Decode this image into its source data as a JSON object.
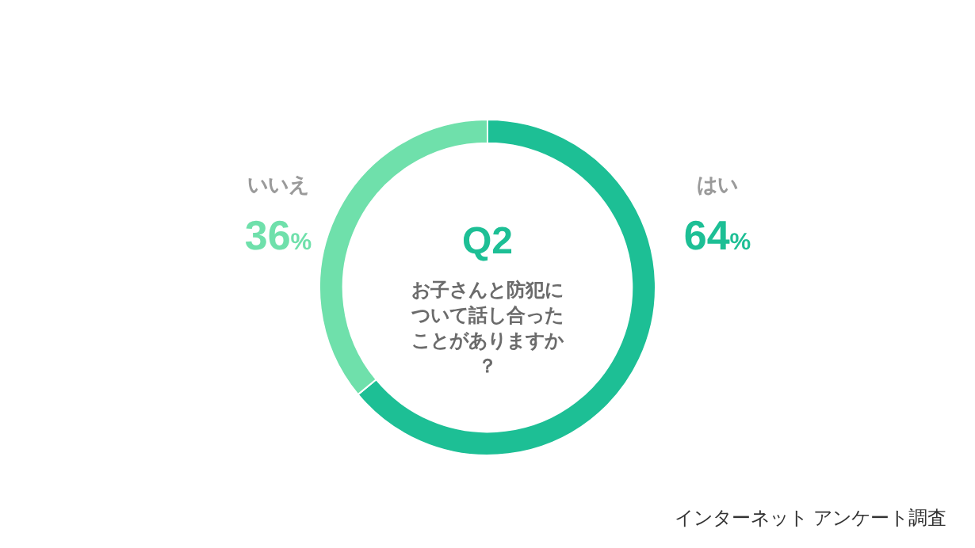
{
  "chart_data": {
    "type": "donut",
    "title": "Q2",
    "subtitle": "お子さんと防犯について話し合ったことがありますか？",
    "categories": [
      "はい",
      "いいえ"
    ],
    "values": [
      64,
      36
    ],
    "value_labels": [
      "64%",
      "36%"
    ],
    "colors": [
      "#1dbf95",
      "#6fe0ab"
    ],
    "annotations": [
      "インターネット アンケート調査"
    ]
  }
}
